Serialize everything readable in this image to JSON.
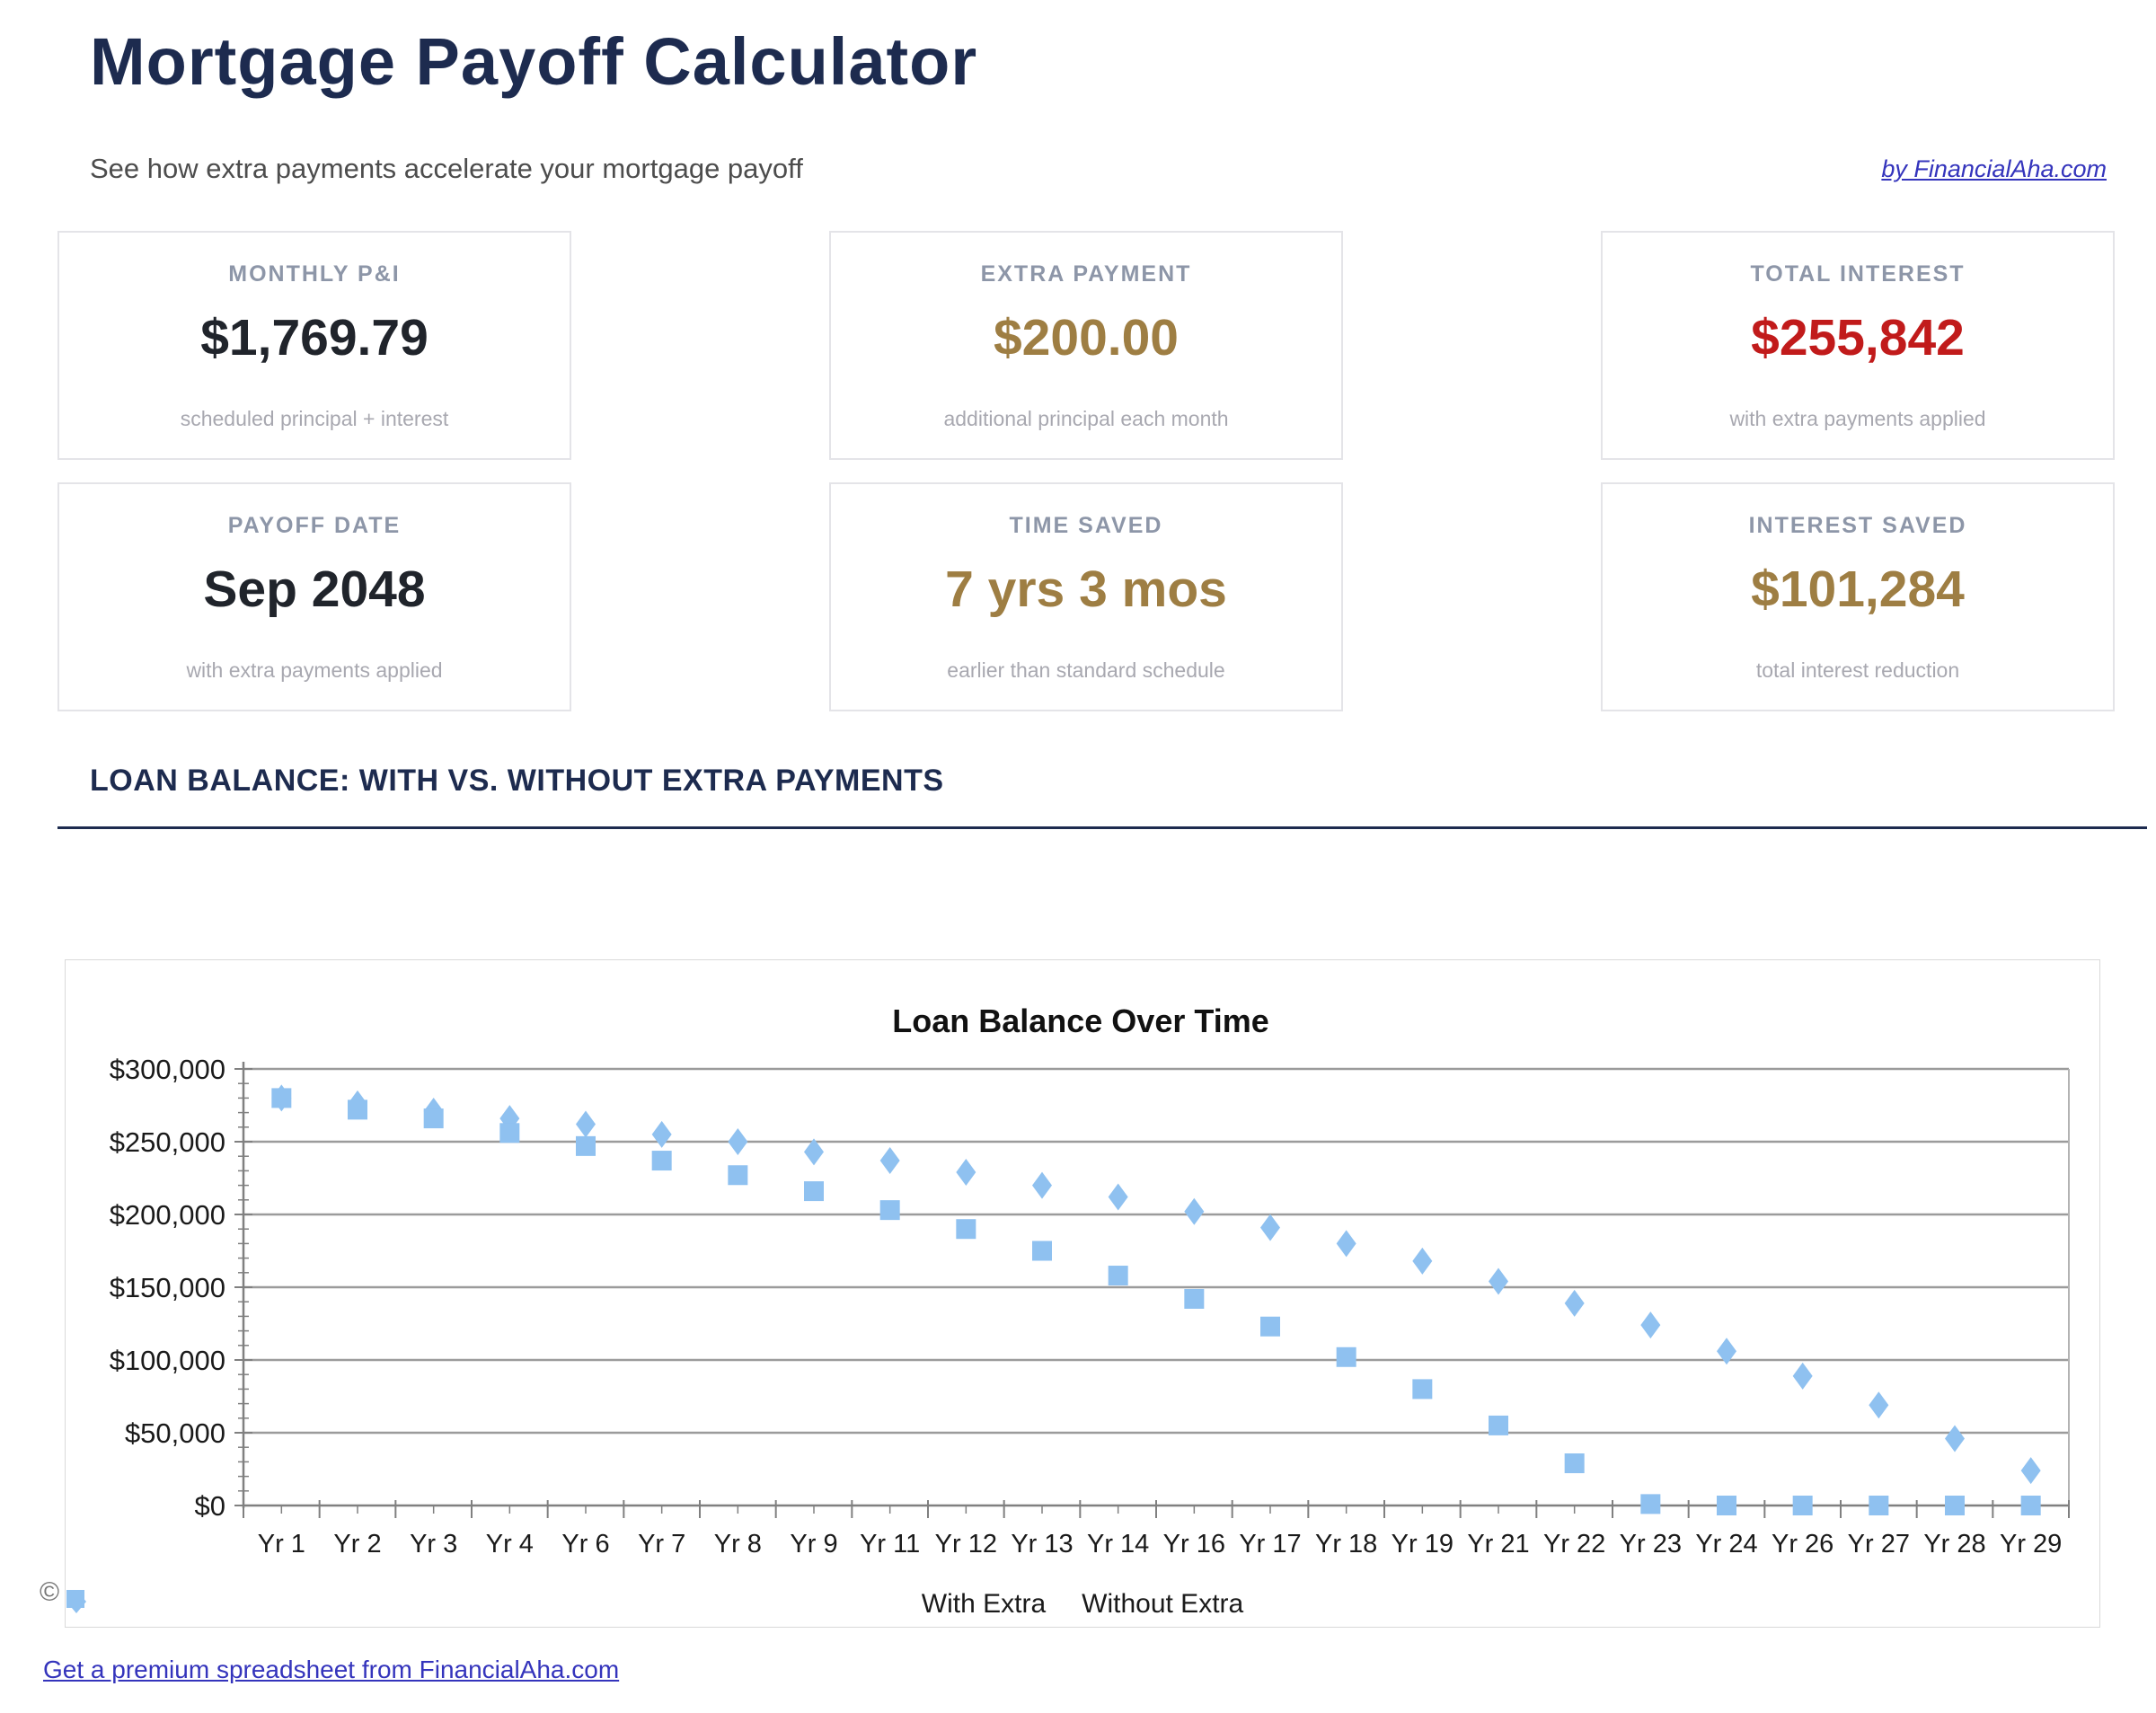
{
  "header": {
    "title": "Mortgage Payoff Calculator",
    "subtitle": "See how extra payments accelerate your mortgage payoff",
    "byline": "by FinancialAha.com"
  },
  "cards": [
    {
      "label": "MONTHLY P&I",
      "value": "$1,769.79",
      "caption": "scheduled principal + interest"
    },
    {
      "label": "EXTRA PAYMENT",
      "value": "$200.00",
      "caption": "additional principal each month"
    },
    {
      "label": "TOTAL INTEREST",
      "value": "$255,842",
      "caption": "with extra payments applied"
    },
    {
      "label": "PAYOFF DATE",
      "value": "Sep 2048",
      "caption": "with extra payments applied"
    },
    {
      "label": "TIME SAVED",
      "value": "7 yrs 3 mos",
      "caption": "earlier than standard schedule"
    },
    {
      "label": "INTEREST SAVED",
      "value": "$101,284",
      "caption": "total interest reduction"
    }
  ],
  "section": {
    "heading": "LOAN BALANCE: WITH VS. WITHOUT EXTRA PAYMENTS"
  },
  "chart_data": {
    "type": "scatter",
    "title": "Loan Balance Over Time",
    "categories": [
      "Yr 1",
      "Yr 2",
      "Yr 3",
      "Yr 4",
      "Yr 6",
      "Yr 7",
      "Yr 8",
      "Yr 9",
      "Yr 11",
      "Yr 12",
      "Yr 13",
      "Yr 14",
      "Yr 16",
      "Yr 17",
      "Yr 18",
      "Yr 19",
      "Yr 21",
      "Yr 22",
      "Yr 23",
      "Yr 24",
      "Yr 26",
      "Yr 27",
      "Yr 28",
      "Yr 29"
    ],
    "series": [
      {
        "name": "With Extra",
        "marker": "square",
        "values": [
          280000,
          272000,
          266000,
          256000,
          247000,
          237000,
          227000,
          216000,
          203000,
          190000,
          175000,
          158000,
          142000,
          123000,
          102000,
          80000,
          55000,
          29000,
          1000,
          0,
          0,
          0,
          0,
          0
        ]
      },
      {
        "name": "Without Extra",
        "marker": "diamond",
        "values": [
          280000,
          276000,
          271000,
          266000,
          262000,
          255000,
          250000,
          243000,
          237000,
          229000,
          220000,
          212000,
          202000,
          191000,
          180000,
          168000,
          154000,
          139000,
          124000,
          106000,
          89000,
          69000,
          46000,
          24000
        ]
      }
    ],
    "y_ticks": [
      "$300,000",
      "$250,000",
      "$200,000",
      "$150,000",
      "$100,000",
      "$50,000",
      "$0"
    ],
    "ylim": [
      0,
      300000
    ],
    "y_major_step": 50000,
    "y_minor_step": 10000,
    "xlabel": "",
    "ylabel": "",
    "grid": true,
    "legend_position": "bottom",
    "marker_color": "#8FC1F0"
  },
  "footer": {
    "clipped_text": "©",
    "link": "Get a premium spreadsheet from FinancialAha.com"
  },
  "colors": {
    "navy": "#1D2B4F",
    "gold": "#9E7E43",
    "red": "#C11B1B",
    "dark": "#20242B",
    "label_gray": "#8D96A8",
    "caption_gray": "#A8A8B0",
    "link_blue": "#3434BC",
    "grid_gray": "#9B9B9B",
    "marker_blue": "#8FC1F0"
  }
}
